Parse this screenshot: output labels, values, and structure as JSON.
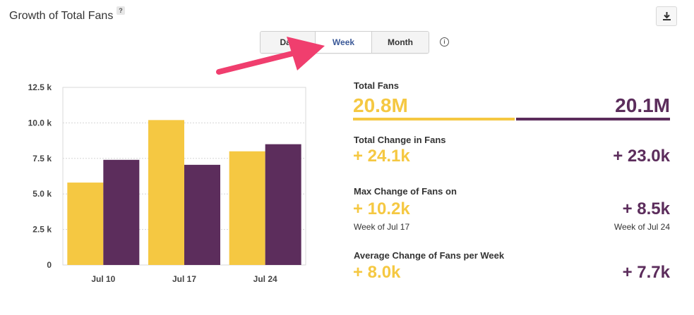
{
  "header": {
    "title": "Growth of Total Fans",
    "help_badge": "?"
  },
  "toolbar": {
    "download_icon": "download-icon"
  },
  "period_toggle": {
    "buttons": [
      {
        "label": "Day"
      },
      {
        "label": "Week"
      },
      {
        "label": "Month"
      }
    ],
    "active": "Week",
    "info_icon": "i"
  },
  "colors": {
    "page_a": "#f5c842",
    "page_b": "#5c2d5c",
    "annotation_arrow": "#f03e6e"
  },
  "chart_data": {
    "type": "bar",
    "categories": [
      "Jul 10",
      "Jul 17",
      "Jul 24"
    ],
    "series": [
      {
        "values": [
          5800,
          10200,
          8000
        ],
        "color": "#f5c842"
      },
      {
        "values": [
          7400,
          7050,
          8500
        ],
        "color": "#5c2d5c"
      }
    ],
    "ylim": [
      0,
      12500
    ],
    "yticks": [
      0,
      2500,
      5000,
      7500,
      10000,
      12500
    ],
    "ytick_labels": [
      "0",
      "2.5 k",
      "5.0 k",
      "7.5 k",
      "10.0 k",
      "12.5 k"
    ],
    "xlabel": "",
    "ylabel": "",
    "grid": true
  },
  "stats": {
    "total_fans": {
      "label": "Total Fans",
      "left": "20.8M",
      "right": "20.1M",
      "left_share": 0.509
    },
    "total_change": {
      "label": "Total Change in Fans",
      "left": "+ 24.1k",
      "right": "+ 23.0k"
    },
    "max_change": {
      "label": "Max Change of Fans on",
      "left": "+ 10.2k",
      "right": "+ 8.5k",
      "left_sub": "Week of Jul 17",
      "right_sub": "Week of Jul 24"
    },
    "avg_change": {
      "label": "Average Change of Fans per Week",
      "left": "+ 8.0k",
      "right": "+ 7.7k"
    }
  }
}
